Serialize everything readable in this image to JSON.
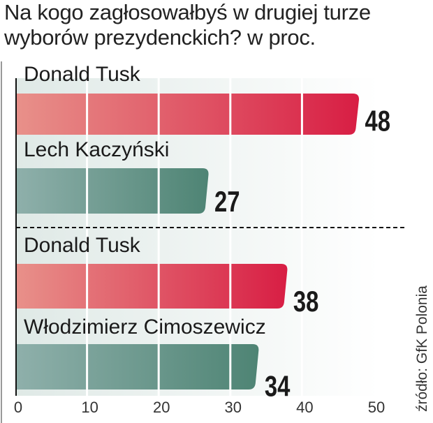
{
  "chart_data": {
    "type": "bar",
    "orientation": "horizontal",
    "title": "Na kogo zagłosowałbyś w drugiej turze wyborów prezydenckich?  w proc.",
    "title_lines": [
      "Na kogo zagłosowałbyś w drugiej turze",
      "wyborów prezydenckich?  w proc."
    ],
    "categories": [
      "Donald Tusk",
      "Lech Kaczyński",
      "Donald Tusk",
      "Włodzimierz Cimoszewicz"
    ],
    "values": [
      48,
      27,
      38,
      34
    ],
    "value_labels": [
      "48",
      "27",
      "38",
      "34"
    ],
    "groups": [
      [
        0,
        1
      ],
      [
        2,
        3
      ]
    ],
    "bar_colors": [
      "red",
      "green",
      "red",
      "green"
    ],
    "xlim": [
      0,
      50
    ],
    "xticks": [
      "0",
      "10",
      "20",
      "30",
      "40",
      "50"
    ],
    "xtick_values": [
      0,
      10,
      20,
      30,
      40,
      50
    ],
    "grid": true,
    "xlabel": "",
    "ylabel": "",
    "source": "źródło: GfK Polonia"
  },
  "colors": {
    "red_start": "#e8918a",
    "red_end": "#d81e44",
    "green_start": "#8fb0ab",
    "green_end": "#4e8474",
    "panel": "#e3ece9"
  }
}
